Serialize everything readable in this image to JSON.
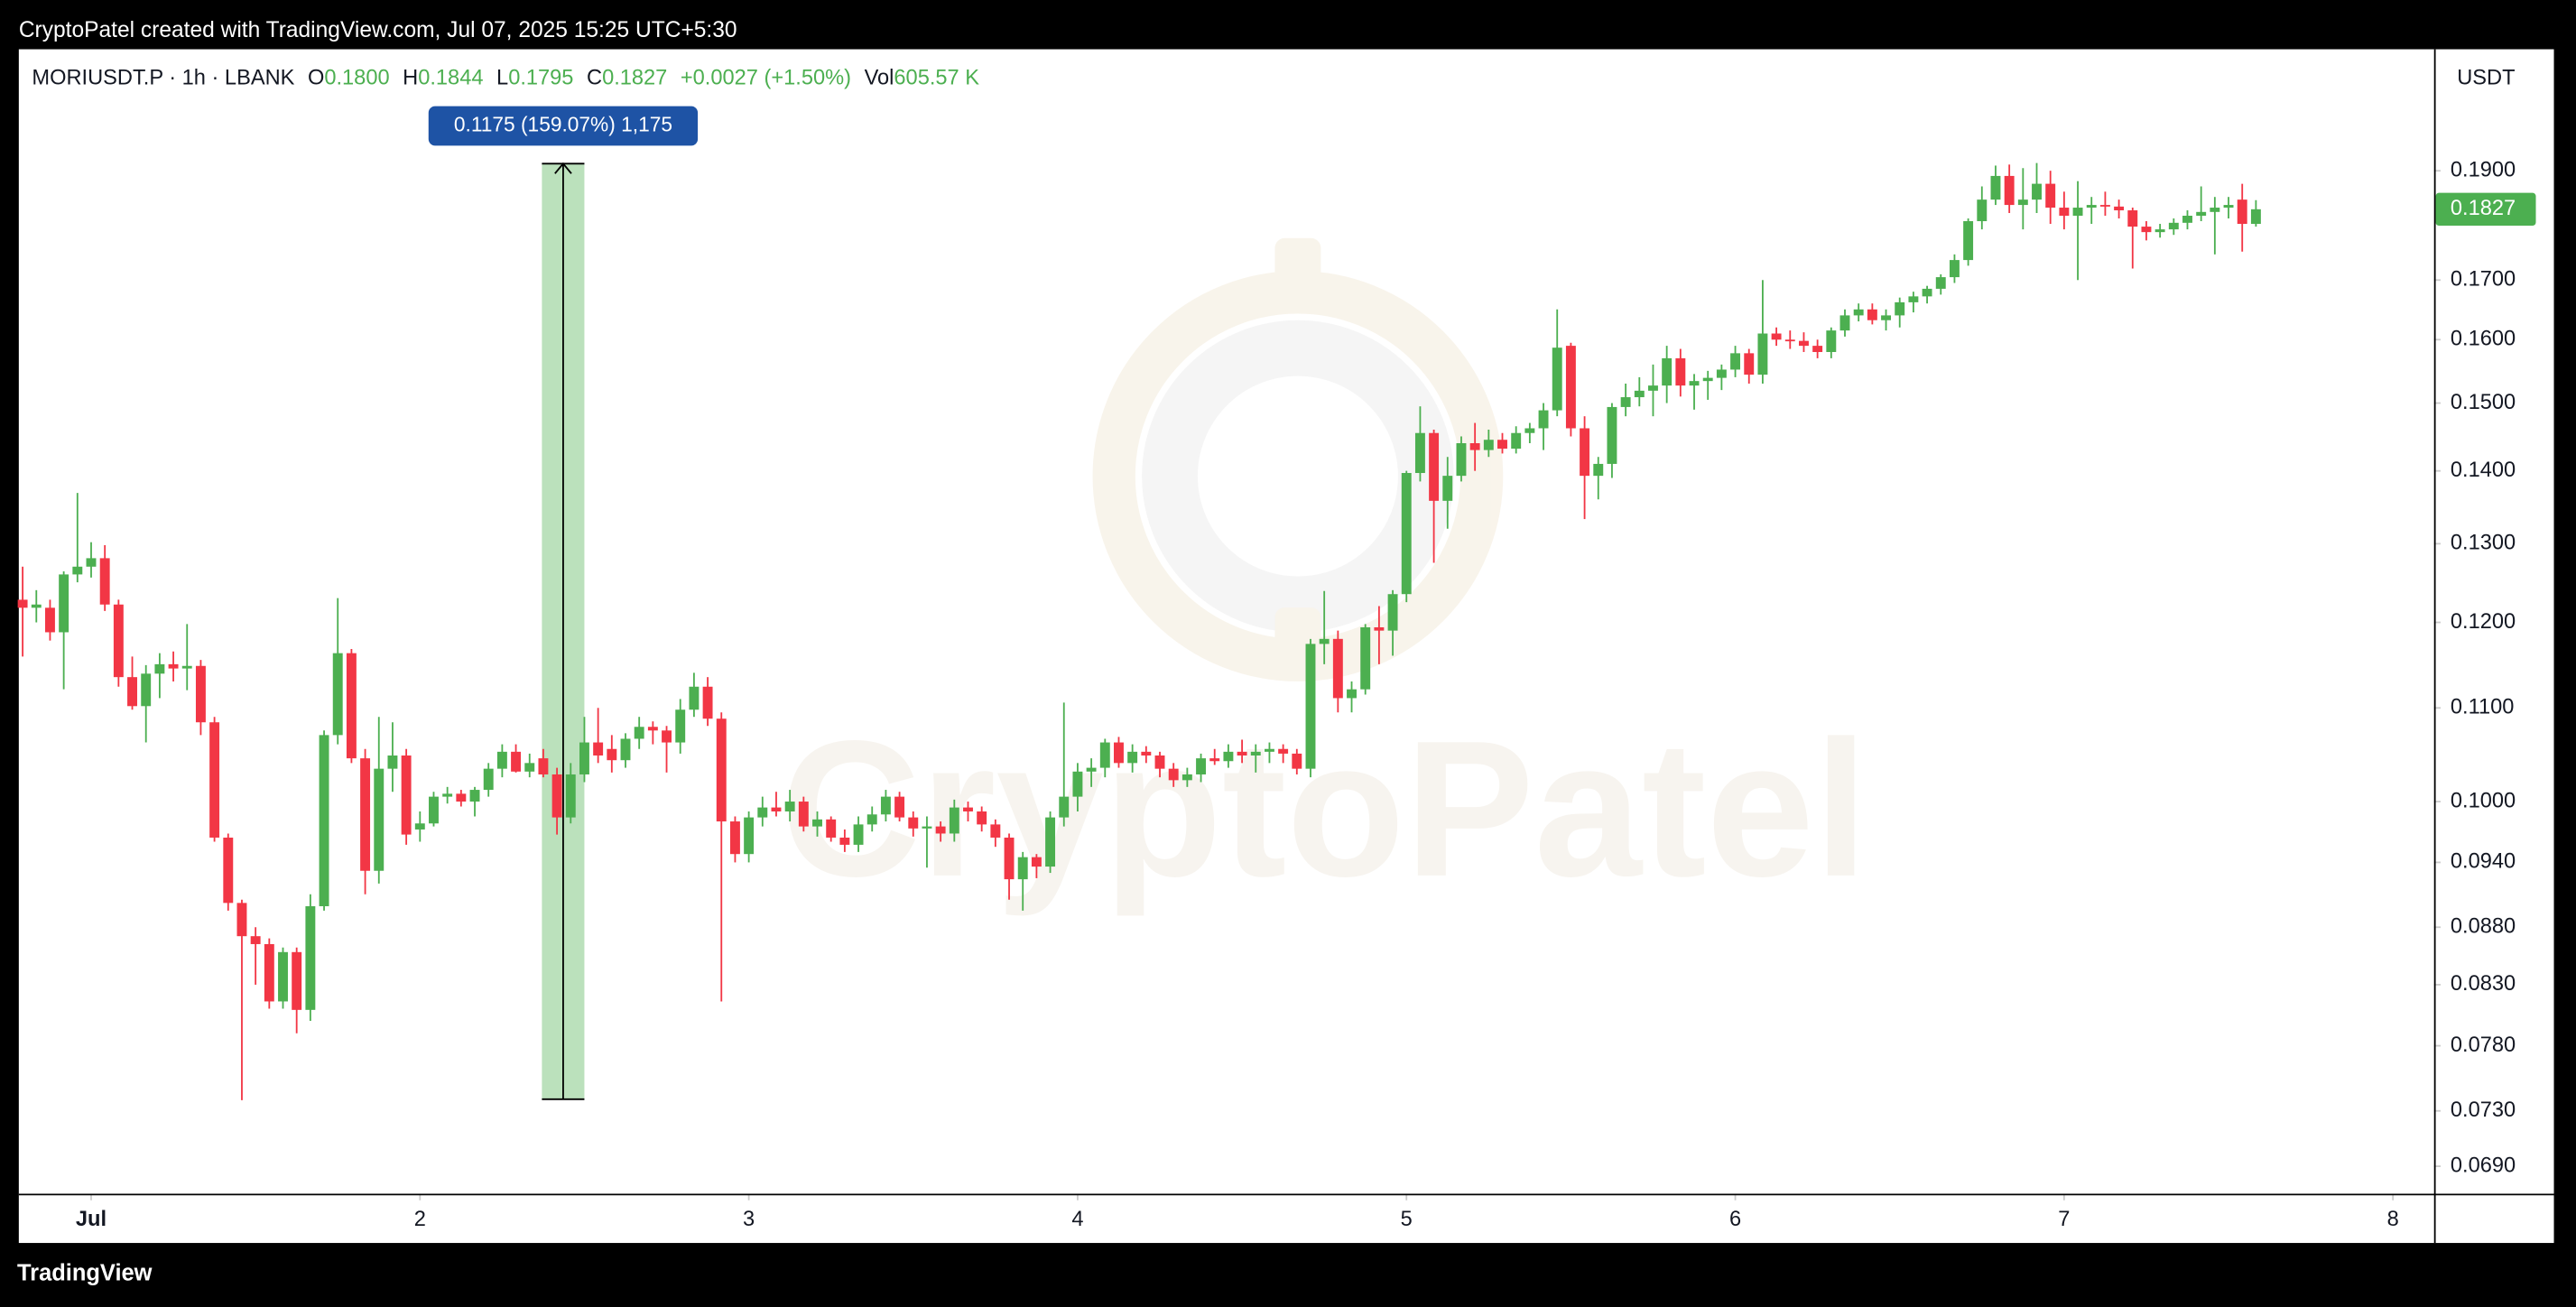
{
  "header": "CryptoPatel created with TradingView.com, Jul 07, 2025 15:25 UTC+5:30",
  "footer": "TradingView",
  "watermark": "CryptoPatel",
  "legend": {
    "symbol": "MORIUSDT.P · 1h · LBANK",
    "items": [
      {
        "key": "O",
        "value": "0.1800"
      },
      {
        "key": "H",
        "value": "0.1844"
      },
      {
        "key": "L",
        "value": "0.1795"
      },
      {
        "key": "C",
        "value": "0.1827"
      }
    ],
    "change": "+0.0027 (+1.50%)",
    "volume_key": "Vol",
    "volume": "605.57 K"
  },
  "currency": "USDT",
  "chart_data": {
    "type": "candlestick",
    "up_color": "#4caf50",
    "down_color": "#f23645",
    "log_scale": true,
    "grid": false,
    "ylim": [
      0.0671,
      0.215
    ],
    "yticks": [
      {
        "value": 0.19,
        "label": "0.1900"
      },
      {
        "value": 0.17,
        "label": "0.1700"
      },
      {
        "value": 0.16,
        "label": "0.1600"
      },
      {
        "value": 0.15,
        "label": "0.1500"
      },
      {
        "value": 0.14,
        "label": "0.1400"
      },
      {
        "value": 0.13,
        "label": "0.1300"
      },
      {
        "value": 0.12,
        "label": "0.1200"
      },
      {
        "value": 0.11,
        "label": "0.1100"
      },
      {
        "value": 0.1,
        "label": "0.1000"
      },
      {
        "value": 0.094,
        "label": "0.0940"
      },
      {
        "value": 0.088,
        "label": "0.0880"
      },
      {
        "value": 0.083,
        "label": "0.0830"
      },
      {
        "value": 0.078,
        "label": "0.0780"
      },
      {
        "value": 0.073,
        "label": "0.0730"
      },
      {
        "value": 0.069,
        "label": "0.0690"
      }
    ],
    "xlim": [
      -0.28,
      176
    ],
    "xticks": [
      {
        "value": 5,
        "label": "Jul"
      },
      {
        "value": 29,
        "label": "2"
      },
      {
        "value": 53,
        "label": "3"
      },
      {
        "value": 77,
        "label": "4"
      },
      {
        "value": 101,
        "label": "5"
      },
      {
        "value": 125,
        "label": "6"
      },
      {
        "value": 149,
        "label": "7"
      },
      {
        "value": 173,
        "label": "8"
      }
    ],
    "last_price": "0.1827",
    "measure": {
      "from": 0.07387,
      "to": 0.19137,
      "x_from": 37.9,
      "x_to": 41,
      "label": "0.1175 (159.07%) 1,175"
    },
    "ohlc": [
      [
        0.1228,
        0.127,
        0.1159,
        0.1218
      ],
      [
        0.1218,
        0.124,
        0.12,
        0.1222
      ],
      [
        0.1218,
        0.1228,
        0.1178,
        0.1188
      ],
      [
        0.1188,
        0.1264,
        0.1121,
        0.126
      ],
      [
        0.126,
        0.1369,
        0.125,
        0.127
      ],
      [
        0.127,
        0.1302,
        0.1256,
        0.1281
      ],
      [
        0.1281,
        0.1298,
        0.1214,
        0.1222
      ],
      [
        0.1222,
        0.1228,
        0.1124,
        0.1135
      ],
      [
        0.1135,
        0.1159,
        0.1098,
        0.1102
      ],
      [
        0.1102,
        0.1149,
        0.1062,
        0.1139
      ],
      [
        0.1139,
        0.1163,
        0.1111,
        0.115
      ],
      [
        0.115,
        0.1165,
        0.113,
        0.1145
      ],
      [
        0.1145,
        0.1198,
        0.112,
        0.1148
      ],
      [
        0.1148,
        0.1155,
        0.107,
        0.1084
      ],
      [
        0.1084,
        0.109,
        0.096,
        0.0964
      ],
      [
        0.0964,
        0.0968,
        0.0895,
        0.0902
      ],
      [
        0.0902,
        0.0905,
        0.0738,
        0.0872
      ],
      [
        0.0872,
        0.088,
        0.083,
        0.0865
      ],
      [
        0.0865,
        0.087,
        0.081,
        0.0816
      ],
      [
        0.0816,
        0.0862,
        0.081,
        0.0858
      ],
      [
        0.0858,
        0.0862,
        0.079,
        0.0809
      ],
      [
        0.0809,
        0.091,
        0.08,
        0.0899
      ],
      [
        0.0899,
        0.1075,
        0.0895,
        0.107
      ],
      [
        0.107,
        0.123,
        0.106,
        0.1163
      ],
      [
        0.1163,
        0.1168,
        0.104,
        0.1045
      ],
      [
        0.1045,
        0.1055,
        0.091,
        0.0932
      ],
      [
        0.0932,
        0.109,
        0.092,
        0.1034
      ],
      [
        0.1034,
        0.1084,
        0.101,
        0.1048
      ],
      [
        0.1048,
        0.1055,
        0.0957,
        0.0967
      ],
      [
        0.0972,
        0.099,
        0.096,
        0.0978
      ],
      [
        0.0978,
        0.101,
        0.0975,
        0.1005
      ],
      [
        0.1005,
        0.1015,
        0.0998,
        0.1008
      ],
      [
        0.1008,
        0.1012,
        0.0995,
        0.1
      ],
      [
        0.1,
        0.1015,
        0.0985,
        0.1012
      ],
      [
        0.1012,
        0.104,
        0.1005,
        0.1034
      ],
      [
        0.1034,
        0.106,
        0.1025,
        0.1052
      ],
      [
        0.1052,
        0.106,
        0.103,
        0.1031
      ],
      [
        0.1031,
        0.105,
        0.1025,
        0.104
      ],
      [
        0.1045,
        0.1055,
        0.1025,
        0.1028
      ],
      [
        0.1028,
        0.1035,
        0.0967,
        0.0984
      ],
      [
        0.0984,
        0.104,
        0.0978,
        0.1028
      ],
      [
        0.1028,
        0.109,
        0.102,
        0.1062
      ],
      [
        0.1062,
        0.11,
        0.104,
        0.1048
      ],
      [
        0.1055,
        0.107,
        0.103,
        0.1043
      ],
      [
        0.1043,
        0.1072,
        0.1035,
        0.1066
      ],
      [
        0.1066,
        0.109,
        0.1055,
        0.1079
      ],
      [
        0.1079,
        0.1085,
        0.106,
        0.1075
      ],
      [
        0.1075,
        0.108,
        0.103,
        0.1062
      ],
      [
        0.1062,
        0.111,
        0.105,
        0.1098
      ],
      [
        0.1098,
        0.114,
        0.109,
        0.1124
      ],
      [
        0.1124,
        0.1135,
        0.108,
        0.1088
      ],
      [
        0.1088,
        0.1095,
        0.0816,
        0.098
      ],
      [
        0.098,
        0.0985,
        0.094,
        0.0948
      ],
      [
        0.0948,
        0.099,
        0.094,
        0.0984
      ],
      [
        0.0984,
        0.1005,
        0.0975,
        0.0994
      ],
      [
        0.0994,
        0.101,
        0.0985,
        0.099
      ],
      [
        0.099,
        0.1012,
        0.098,
        0.1
      ],
      [
        0.1,
        0.1005,
        0.097,
        0.0975
      ],
      [
        0.0975,
        0.099,
        0.0965,
        0.0982
      ],
      [
        0.0982,
        0.0985,
        0.096,
        0.0964
      ],
      [
        0.0964,
        0.0972,
        0.095,
        0.0957
      ],
      [
        0.0957,
        0.0985,
        0.095,
        0.0977
      ],
      [
        0.0977,
        0.0995,
        0.097,
        0.0987
      ],
      [
        0.0987,
        0.1012,
        0.098,
        0.1005
      ],
      [
        0.1005,
        0.101,
        0.098,
        0.0984
      ],
      [
        0.0984,
        0.099,
        0.0965,
        0.0973
      ],
      [
        0.0973,
        0.0985,
        0.0935,
        0.0975
      ],
      [
        0.0975,
        0.098,
        0.096,
        0.0968
      ],
      [
        0.0968,
        0.1002,
        0.096,
        0.0994
      ],
      [
        0.0994,
        0.1,
        0.098,
        0.099
      ],
      [
        0.099,
        0.0995,
        0.097,
        0.0977
      ],
      [
        0.0977,
        0.0982,
        0.0955,
        0.0964
      ],
      [
        0.0964,
        0.0968,
        0.0905,
        0.0924
      ],
      [
        0.0924,
        0.095,
        0.0895,
        0.0945
      ],
      [
        0.0945,
        0.0948,
        0.0925,
        0.0936
      ],
      [
        0.0936,
        0.099,
        0.093,
        0.0984
      ],
      [
        0.0984,
        0.1106,
        0.0975,
        0.1005
      ],
      [
        0.1005,
        0.104,
        0.099,
        0.1031
      ],
      [
        0.1031,
        0.1045,
        0.1015,
        0.1035
      ],
      [
        0.1035,
        0.1066,
        0.1025,
        0.1062
      ],
      [
        0.1062,
        0.1068,
        0.1035,
        0.104
      ],
      [
        0.104,
        0.106,
        0.103,
        0.1052
      ],
      [
        0.1052,
        0.1058,
        0.104,
        0.1048
      ],
      [
        0.1048,
        0.1052,
        0.1025,
        0.1034
      ],
      [
        0.1034,
        0.104,
        0.1015,
        0.1022
      ],
      [
        0.1022,
        0.1035,
        0.1015,
        0.1028
      ],
      [
        0.1028,
        0.105,
        0.102,
        0.1045
      ],
      [
        0.1045,
        0.1055,
        0.1038,
        0.1042
      ],
      [
        0.1042,
        0.106,
        0.1035,
        0.1052
      ],
      [
        0.1052,
        0.1065,
        0.104,
        0.1048
      ],
      [
        0.1048,
        0.106,
        0.103,
        0.1052
      ],
      [
        0.1052,
        0.1062,
        0.104,
        0.1055
      ],
      [
        0.1055,
        0.106,
        0.104,
        0.105
      ],
      [
        0.105,
        0.1055,
        0.1028,
        0.1034
      ],
      [
        0.1034,
        0.118,
        0.1025,
        0.1174
      ],
      [
        0.1174,
        0.1239,
        0.115,
        0.118
      ],
      [
        0.118,
        0.119,
        0.1095,
        0.1111
      ],
      [
        0.1111,
        0.113,
        0.1095,
        0.1121
      ],
      [
        0.1121,
        0.1198,
        0.1115,
        0.1194
      ],
      [
        0.1194,
        0.122,
        0.115,
        0.119
      ],
      [
        0.119,
        0.124,
        0.116,
        0.1235
      ],
      [
        0.1235,
        0.14,
        0.1225,
        0.1397
      ],
      [
        0.1397,
        0.1495,
        0.1385,
        0.1455
      ],
      [
        0.1455,
        0.146,
        0.1275,
        0.1358
      ],
      [
        0.1358,
        0.142,
        0.132,
        0.1393
      ],
      [
        0.1393,
        0.145,
        0.1385,
        0.144
      ],
      [
        0.144,
        0.147,
        0.14,
        0.143
      ],
      [
        0.143,
        0.146,
        0.142,
        0.1445
      ],
      [
        0.1445,
        0.1455,
        0.1425,
        0.1432
      ],
      [
        0.1432,
        0.1465,
        0.1425,
        0.1455
      ],
      [
        0.1455,
        0.147,
        0.144,
        0.1462
      ],
      [
        0.1462,
        0.15,
        0.143,
        0.1489
      ],
      [
        0.1489,
        0.165,
        0.148,
        0.1587
      ],
      [
        0.159,
        0.1595,
        0.145,
        0.1462
      ],
      [
        0.1462,
        0.148,
        0.1333,
        0.1393
      ],
      [
        0.1393,
        0.142,
        0.136,
        0.141
      ],
      [
        0.141,
        0.15,
        0.139,
        0.1494
      ],
      [
        0.1494,
        0.153,
        0.148,
        0.1509
      ],
      [
        0.1509,
        0.154,
        0.1495,
        0.1519
      ],
      [
        0.1519,
        0.156,
        0.148,
        0.1527
      ],
      [
        0.1527,
        0.159,
        0.15,
        0.157
      ],
      [
        0.157,
        0.1585,
        0.151,
        0.1527
      ],
      [
        0.1527,
        0.1545,
        0.149,
        0.1534
      ],
      [
        0.1534,
        0.155,
        0.1505,
        0.1539
      ],
      [
        0.1539,
        0.156,
        0.152,
        0.1552
      ],
      [
        0.1552,
        0.159,
        0.154,
        0.1578
      ],
      [
        0.1578,
        0.1585,
        0.153,
        0.1544
      ],
      [
        0.1544,
        0.17,
        0.153,
        0.161
      ],
      [
        0.161,
        0.162,
        0.159,
        0.16
      ],
      [
        0.16,
        0.1615,
        0.1585,
        0.1598
      ],
      [
        0.1598,
        0.1612,
        0.158,
        0.159
      ],
      [
        0.159,
        0.16,
        0.157,
        0.158
      ],
      [
        0.158,
        0.162,
        0.157,
        0.1615
      ],
      [
        0.1615,
        0.165,
        0.1605,
        0.164
      ],
      [
        0.164,
        0.166,
        0.163,
        0.165
      ],
      [
        0.165,
        0.166,
        0.1625,
        0.1632
      ],
      [
        0.1632,
        0.165,
        0.1615,
        0.164
      ],
      [
        0.164,
        0.167,
        0.162,
        0.1662
      ],
      [
        0.1662,
        0.168,
        0.1645,
        0.1672
      ],
      [
        0.1672,
        0.169,
        0.166,
        0.1685
      ],
      [
        0.1685,
        0.171,
        0.1675,
        0.1705
      ],
      [
        0.1705,
        0.1745,
        0.1695,
        0.1735
      ],
      [
        0.1735,
        0.181,
        0.1725,
        0.1805
      ],
      [
        0.1805,
        0.187,
        0.179,
        0.1845
      ],
      [
        0.1845,
        0.191,
        0.1835,
        0.189
      ],
      [
        0.189,
        0.1912,
        0.182,
        0.1835
      ],
      [
        0.1835,
        0.1905,
        0.179,
        0.1845
      ],
      [
        0.1845,
        0.1915,
        0.182,
        0.1875
      ],
      [
        0.1875,
        0.19,
        0.18,
        0.183
      ],
      [
        0.183,
        0.186,
        0.179,
        0.1815
      ],
      [
        0.1815,
        0.188,
        0.17,
        0.183
      ],
      [
        0.183,
        0.185,
        0.18,
        0.1835
      ],
      [
        0.1835,
        0.186,
        0.1815,
        0.1832
      ],
      [
        0.1832,
        0.1845,
        0.181,
        0.1825
      ],
      [
        0.1825,
        0.183,
        0.172,
        0.1795
      ],
      [
        0.1795,
        0.1805,
        0.177,
        0.1785
      ],
      [
        0.1785,
        0.18,
        0.1775,
        0.179
      ],
      [
        0.179,
        0.181,
        0.178,
        0.1802
      ],
      [
        0.1802,
        0.1825,
        0.179,
        0.1815
      ],
      [
        0.1815,
        0.187,
        0.1805,
        0.1822
      ],
      [
        0.1822,
        0.185,
        0.1745,
        0.183
      ],
      [
        0.183,
        0.185,
        0.181,
        0.1835
      ],
      [
        0.1845,
        0.1875,
        0.175,
        0.18
      ],
      [
        0.18,
        0.1844,
        0.1795,
        0.1827
      ]
    ]
  }
}
